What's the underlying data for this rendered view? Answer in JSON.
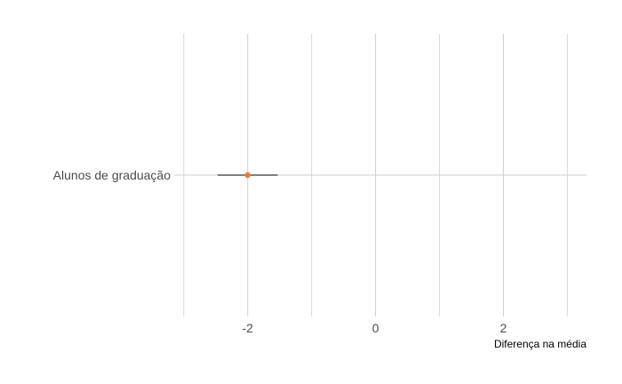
{
  "chart_data": {
    "type": "scatter",
    "title": "",
    "xlabel": "Diferença na média",
    "ylabel": "",
    "xlim": [
      -3.15,
      3.3
    ],
    "x_major_ticks": [
      -2,
      0,
      2
    ],
    "x_tick_labels": [
      "-2",
      "0",
      "2"
    ],
    "x_minor_ticks": [
      -3,
      -1,
      1,
      3
    ],
    "grid": true,
    "legend": "none",
    "categories": [
      "Alunos de graduação"
    ],
    "series": [
      {
        "points": [
          {
            "category": "Alunos de graduação",
            "estimate": -2.0,
            "lower": -2.47,
            "upper": -1.53
          }
        ]
      }
    ],
    "colors": {
      "point": "#f07a3a",
      "errorbar": "#000000",
      "grid_major": "#cfcfcf",
      "grid_minor": "#d9d9d9"
    }
  }
}
